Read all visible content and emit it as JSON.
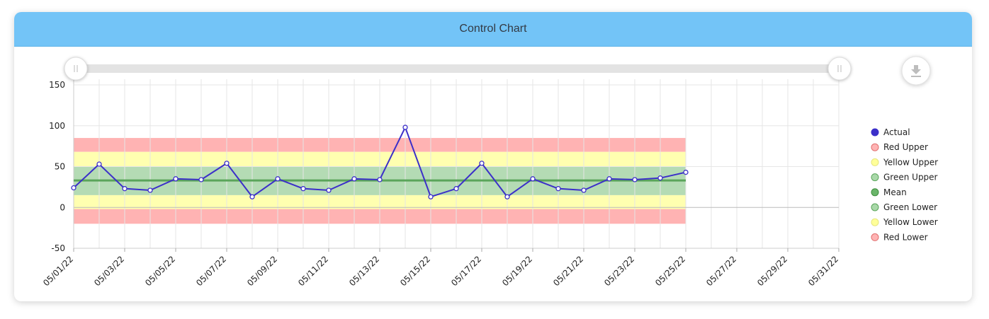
{
  "card": {
    "title": "Control Chart"
  },
  "toolbar": {
    "download_icon": "download-icon",
    "slider_handle_icon": "grip-icon"
  },
  "colors": {
    "header": "#73c4f7",
    "actual": "#3b2fc9",
    "mean": "#5aa55a",
    "green_band": "#b4dbb4",
    "yellow_band": "#ffffb0",
    "red_band": "#ffb3b3"
  },
  "chart_data": {
    "type": "line",
    "title": "",
    "xlabel": "",
    "ylabel": "",
    "ylim": [
      -50,
      150
    ],
    "yticks": [
      -50,
      0,
      50,
      100,
      150
    ],
    "x_range": [
      "05/01/22",
      "05/31/22"
    ],
    "xticks": [
      "05/01/22",
      "05/03/22",
      "05/05/22",
      "05/07/22",
      "05/09/22",
      "05/11/22",
      "05/13/22",
      "05/15/22",
      "05/17/22",
      "05/19/22",
      "05/21/22",
      "05/23/22",
      "05/25/22",
      "05/27/22",
      "05/29/22",
      "05/31/22"
    ],
    "grid": true,
    "legend_position": "right",
    "series": [
      {
        "name": "Actual",
        "x": [
          "05/01/22",
          "05/02/22",
          "05/03/22",
          "05/04/22",
          "05/05/22",
          "05/06/22",
          "05/07/22",
          "05/08/22",
          "05/09/22",
          "05/10/22",
          "05/11/22",
          "05/12/22",
          "05/13/22",
          "05/14/22",
          "05/15/22",
          "05/16/22",
          "05/17/22",
          "05/18/22",
          "05/19/22",
          "05/20/22",
          "05/21/22",
          "05/22/22",
          "05/23/22",
          "05/24/22",
          "05/25/22"
        ],
        "values": [
          24,
          53,
          23,
          21,
          35,
          34,
          54,
          13,
          35,
          23,
          21,
          35,
          34,
          98,
          13,
          23,
          54,
          13,
          35,
          23,
          21,
          35,
          34,
          36,
          43
        ]
      },
      {
        "name": "Red Upper",
        "value": 85
      },
      {
        "name": "Yellow Upper",
        "value": 68
      },
      {
        "name": "Green Upper",
        "value": 50
      },
      {
        "name": "Mean",
        "value": 33
      },
      {
        "name": "Green Lower",
        "value": 15
      },
      {
        "name": "Yellow Lower",
        "value": -2
      },
      {
        "name": "Red Lower",
        "value": -20
      }
    ],
    "band_range": [
      "05/01/22",
      "05/25/22"
    ]
  }
}
